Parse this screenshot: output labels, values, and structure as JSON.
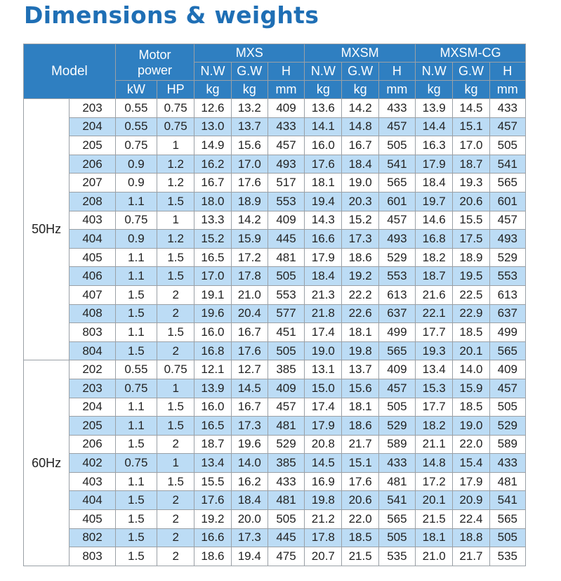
{
  "title": "Dimensions & weights",
  "headers": {
    "model": "Model",
    "motor_power": "Motor\npower",
    "groups": [
      "MXS",
      "MXSM",
      "MXSM-CG"
    ],
    "sub": [
      "N.W",
      "G.W",
      "H"
    ],
    "units_motor": [
      "kW",
      "HP"
    ],
    "units_group": [
      "kg",
      "kg",
      "mm"
    ]
  },
  "sections": [
    {
      "freq": "50Hz",
      "rows": [
        [
          "203",
          "0.55",
          "0.75",
          "12.6",
          "13.2",
          "409",
          "13.6",
          "14.2",
          "433",
          "13.9",
          "14.5",
          "433"
        ],
        [
          "204",
          "0.55",
          "0.75",
          "13.0",
          "13.7",
          "433",
          "14.1",
          "14.8",
          "457",
          "14.4",
          "15.1",
          "457"
        ],
        [
          "205",
          "0.75",
          "1",
          "14.9",
          "15.6",
          "457",
          "16.0",
          "16.7",
          "505",
          "16.3",
          "17.0",
          "505"
        ],
        [
          "206",
          "0.9",
          "1.2",
          "16.2",
          "17.0",
          "493",
          "17.6",
          "18.4",
          "541",
          "17.9",
          "18.7",
          "541"
        ],
        [
          "207",
          "0.9",
          "1.2",
          "16.7",
          "17.6",
          "517",
          "18.1",
          "19.0",
          "565",
          "18.4",
          "19.3",
          "565"
        ],
        [
          "208",
          "1.1",
          "1.5",
          "18.0",
          "18.9",
          "553",
          "19.4",
          "20.3",
          "601",
          "19.7",
          "20.6",
          "601"
        ],
        [
          "403",
          "0.75",
          "1",
          "13.3",
          "14.2",
          "409",
          "14.3",
          "15.2",
          "457",
          "14.6",
          "15.5",
          "457"
        ],
        [
          "404",
          "0.9",
          "1.2",
          "15.2",
          "15.9",
          "445",
          "16.6",
          "17.3",
          "493",
          "16.8",
          "17.5",
          "493"
        ],
        [
          "405",
          "1.1",
          "1.5",
          "16.5",
          "17.2",
          "481",
          "17.9",
          "18.6",
          "529",
          "18.2",
          "18.9",
          "529"
        ],
        [
          "406",
          "1.1",
          "1.5",
          "17.0",
          "17.8",
          "505",
          "18.4",
          "19.2",
          "553",
          "18.7",
          "19.5",
          "553"
        ],
        [
          "407",
          "1.5",
          "2",
          "19.1",
          "21.0",
          "553",
          "21.3",
          "22.2",
          "613",
          "21.6",
          "22.5",
          "613"
        ],
        [
          "408",
          "1.5",
          "2",
          "19.6",
          "20.4",
          "577",
          "21.8",
          "22.6",
          "637",
          "22.1",
          "22.9",
          "637"
        ],
        [
          "803",
          "1.1",
          "1.5",
          "16.0",
          "16.7",
          "451",
          "17.4",
          "18.1",
          "499",
          "17.7",
          "18.5",
          "499"
        ],
        [
          "804",
          "1.5",
          "2",
          "16.8",
          "17.6",
          "505",
          "19.0",
          "19.8",
          "565",
          "19.3",
          "20.1",
          "565"
        ]
      ]
    },
    {
      "freq": "60Hz",
      "rows": [
        [
          "202",
          "0.55",
          "0.75",
          "12.1",
          "12.7",
          "385",
          "13.1",
          "13.7",
          "409",
          "13.4",
          "14.0",
          "409"
        ],
        [
          "203",
          "0.75",
          "1",
          "13.9",
          "14.5",
          "409",
          "15.0",
          "15.6",
          "457",
          "15.3",
          "15.9",
          "457"
        ],
        [
          "204",
          "1.1",
          "1.5",
          "16.0",
          "16.7",
          "457",
          "17.4",
          "18.1",
          "505",
          "17.7",
          "18.5",
          "505"
        ],
        [
          "205",
          "1.1",
          "1.5",
          "16.5",
          "17.3",
          "481",
          "17.9",
          "18.6",
          "529",
          "18.2",
          "19.0",
          "529"
        ],
        [
          "206",
          "1.5",
          "2",
          "18.7",
          "19.6",
          "529",
          "20.8",
          "21.7",
          "589",
          "21.1",
          "22.0",
          "589"
        ],
        [
          "402",
          "0.75",
          "1",
          "13.4",
          "14.0",
          "385",
          "14.5",
          "15.1",
          "433",
          "14.8",
          "15.4",
          "433"
        ],
        [
          "403",
          "1.1",
          "1.5",
          "15.5",
          "16.2",
          "433",
          "16.9",
          "17.6",
          "481",
          "17.2",
          "17.9",
          "481"
        ],
        [
          "404",
          "1.5",
          "2",
          "17.6",
          "18.4",
          "481",
          "19.8",
          "20.6",
          "541",
          "20.1",
          "20.9",
          "541"
        ],
        [
          "405",
          "1.5",
          "2",
          "19.2",
          "20.0",
          "505",
          "21.2",
          "22.0",
          "565",
          "21.5",
          "22.4",
          "565"
        ],
        [
          "802",
          "1.5",
          "2",
          "16.6",
          "17.3",
          "445",
          "17.8",
          "18.5",
          "505",
          "18.1",
          "18.8",
          "505"
        ],
        [
          "803",
          "1.5",
          "2",
          "18.6",
          "19.4",
          "475",
          "20.7",
          "21.5",
          "535",
          "21.0",
          "21.7",
          "535"
        ]
      ]
    }
  ]
}
